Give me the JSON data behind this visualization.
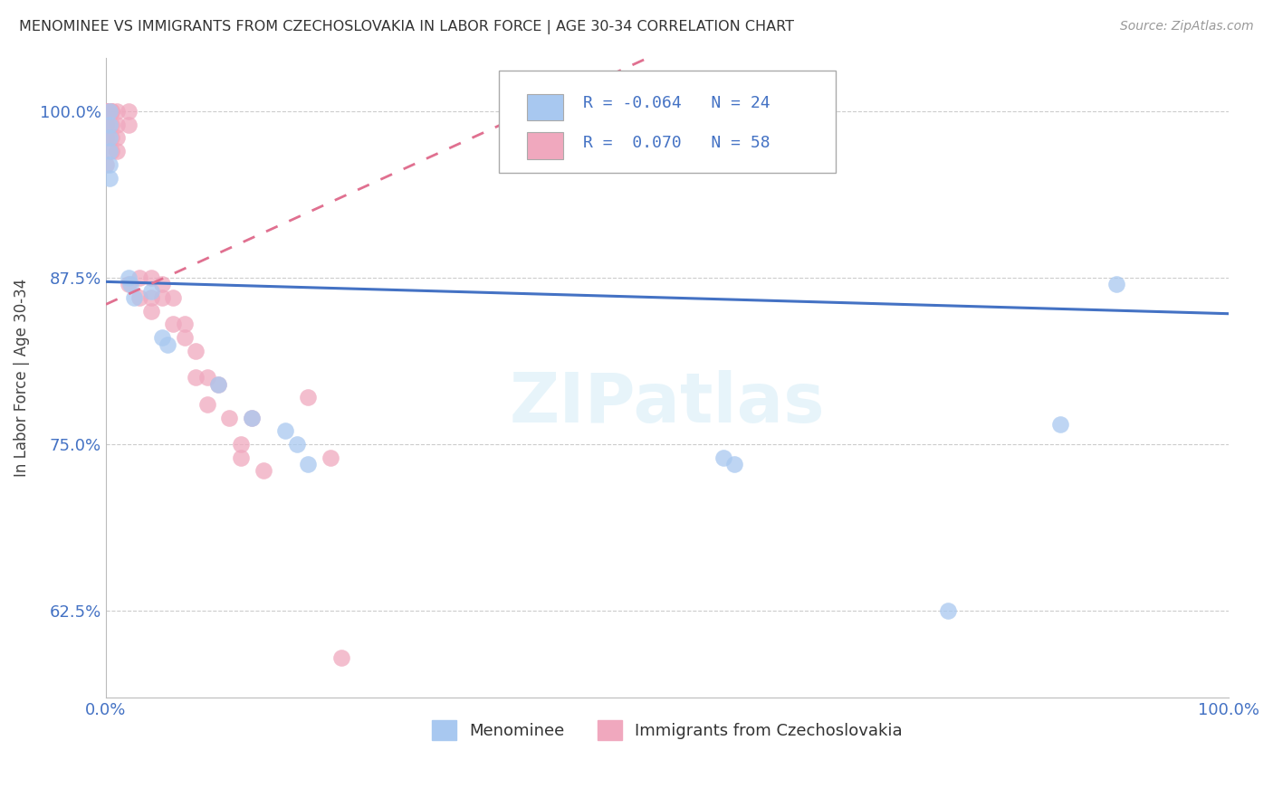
{
  "title": "MENOMINEE VS IMMIGRANTS FROM CZECHOSLOVAKIA IN LABOR FORCE | AGE 30-34 CORRELATION CHART",
  "source": "Source: ZipAtlas.com",
  "ylabel": "In Labor Force | Age 30-34",
  "xlim": [
    0.0,
    1.0
  ],
  "ylim": [
    0.56,
    1.04
  ],
  "yticks": [
    0.625,
    0.75,
    0.875,
    1.0
  ],
  "ytick_labels": [
    "62.5%",
    "75.0%",
    "87.5%",
    "100.0%"
  ],
  "xtick_labels": [
    "0.0%",
    "100.0%"
  ],
  "xticks": [
    0.0,
    1.0
  ],
  "r_menominee": -0.064,
  "n_menominee": 24,
  "r_czech": 0.07,
  "n_czech": 58,
  "menominee_color": "#a8c8f0",
  "czech_color": "#f0a8be",
  "line_menominee_color": "#4472c4",
  "line_czech_color": "#e07090",
  "watermark": "ZIPatlas",
  "menominee_points_x": [
    0.003,
    0.003,
    0.003,
    0.003,
    0.003,
    0.003,
    0.02,
    0.022,
    0.025,
    0.04,
    0.05,
    0.055,
    0.1,
    0.13,
    0.16,
    0.17,
    0.18,
    0.55,
    0.56,
    0.75,
    0.85,
    0.9
  ],
  "menominee_points_y": [
    1.0,
    0.99,
    0.98,
    0.97,
    0.96,
    0.95,
    0.875,
    0.87,
    0.86,
    0.865,
    0.83,
    0.825,
    0.795,
    0.77,
    0.76,
    0.75,
    0.735,
    0.74,
    0.735,
    0.625,
    0.765,
    0.87
  ],
  "czech_points_x": [
    0.0,
    0.0,
    0.0,
    0.0,
    0.0,
    0.0,
    0.0,
    0.0,
    0.0,
    0.0,
    0.0,
    0.0,
    0.005,
    0.005,
    0.005,
    0.005,
    0.005,
    0.005,
    0.01,
    0.01,
    0.01,
    0.01,
    0.02,
    0.02,
    0.02,
    0.03,
    0.03,
    0.04,
    0.04,
    0.04,
    0.05,
    0.05,
    0.06,
    0.06,
    0.07,
    0.07,
    0.08,
    0.08,
    0.09,
    0.09,
    0.1,
    0.11,
    0.12,
    0.12,
    0.13,
    0.14,
    0.18,
    0.2,
    0.21
  ],
  "czech_points_y": [
    1.0,
    1.0,
    1.0,
    1.0,
    1.0,
    1.0,
    1.0,
    1.0,
    1.0,
    0.99,
    0.98,
    0.96,
    1.0,
    1.0,
    1.0,
    0.99,
    0.98,
    0.97,
    1.0,
    0.99,
    0.98,
    0.97,
    1.0,
    0.99,
    0.87,
    0.875,
    0.86,
    0.875,
    0.86,
    0.85,
    0.87,
    0.86,
    0.86,
    0.84,
    0.84,
    0.83,
    0.82,
    0.8,
    0.8,
    0.78,
    0.795,
    0.77,
    0.75,
    0.74,
    0.77,
    0.73,
    0.785,
    0.74,
    0.59
  ],
  "men_line_x0": 0.0,
  "men_line_y0": 0.872,
  "men_line_x1": 1.0,
  "men_line_y1": 0.848,
  "czech_line_x0": 0.0,
  "czech_line_y0": 0.855,
  "czech_line_x1": 0.3,
  "czech_line_y1": 0.97
}
